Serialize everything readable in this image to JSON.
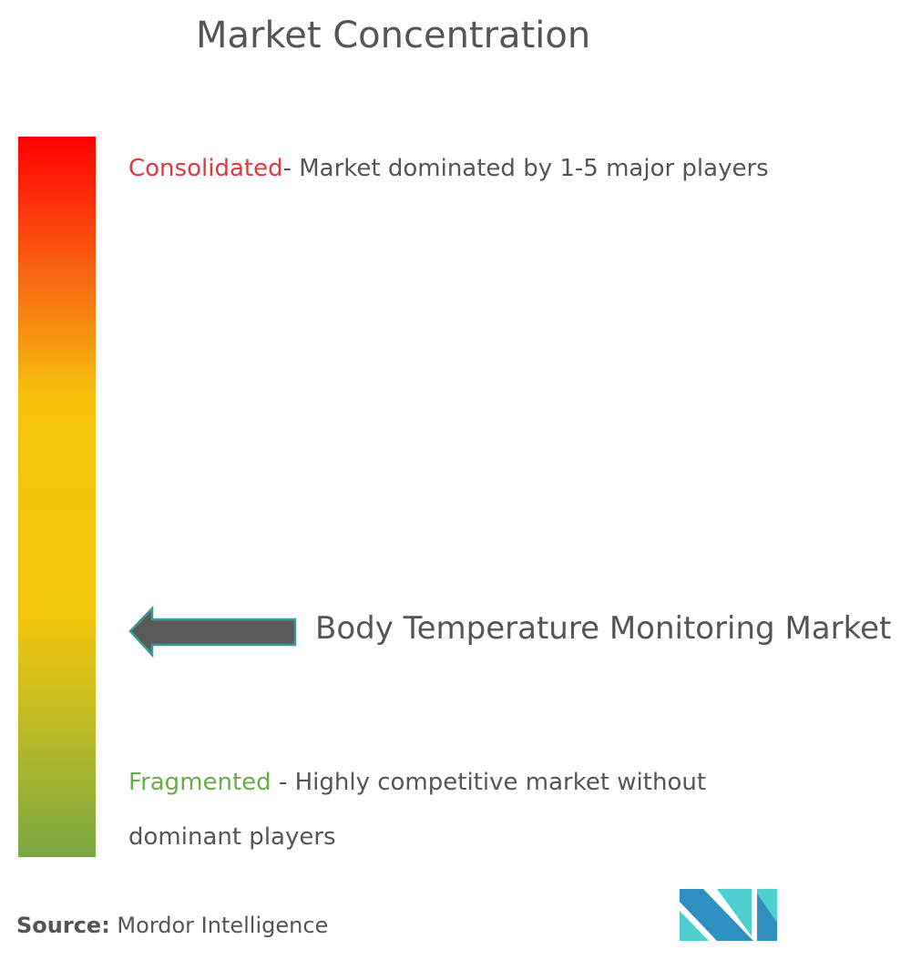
{
  "title": "Market Concentration",
  "scale": {
    "top_color": "#ff0000",
    "middle_color": "#f4c60b",
    "bottom_color": "#7aa842",
    "consolidated": {
      "label": "Consolidated",
      "label_color": "#e0393e",
      "text": "- Market dominated by 1-5 major players"
    },
    "fragmented": {
      "label": "Fragmented",
      "label_color": "#6aac46",
      "text": " - Highly competitive market without dominant players"
    }
  },
  "chart_data": {
    "type": "gauge",
    "title": "Market Concentration",
    "scale_ends": [
      "Consolidated",
      "Fragmented"
    ],
    "marker_label": "Body Temperature Monitoring Market",
    "marker_position_fraction_from_bottom": 0.31
  },
  "source": {
    "label": "Source:",
    "value": " Mordor Intelligence"
  },
  "logo": {
    "text": "MI",
    "colors": [
      "#2e8fc0",
      "#4ecfd0"
    ]
  }
}
